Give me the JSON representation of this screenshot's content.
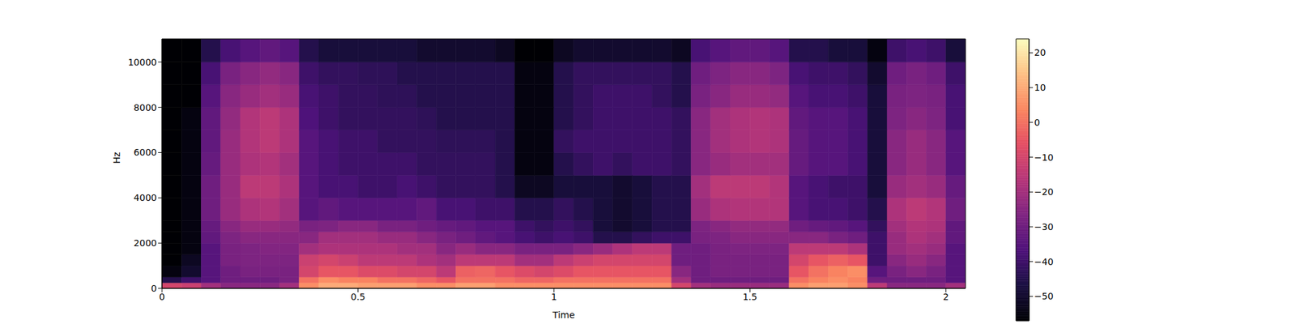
{
  "chart_data": {
    "type": "heatmap",
    "xlabel": "Time",
    "ylabel": "Hz",
    "color": "magma",
    "xlim": [
      0,
      2.05
    ],
    "xticks": [
      0,
      0.5,
      1,
      1.5,
      2
    ],
    "ylim": [
      0,
      11025
    ],
    "yticks": [
      0,
      2000,
      4000,
      6000,
      8000,
      10000
    ],
    "x_edges": [
      0,
      0.05,
      0.1,
      0.15,
      0.2,
      0.25,
      0.3,
      0.35,
      0.4,
      0.45,
      0.5,
      0.55,
      0.6,
      0.65,
      0.7,
      0.75,
      0.8,
      0.85,
      0.9,
      0.95,
      1.0,
      1.05,
      1.1,
      1.15,
      1.2,
      1.25,
      1.3,
      1.35,
      1.4,
      1.45,
      1.5,
      1.55,
      1.6,
      1.65,
      1.7,
      1.75,
      1.8,
      1.85,
      1.9,
      1.95,
      2.0,
      2.05
    ],
    "y_edges": [
      0,
      250,
      500,
      1000,
      1500,
      2000,
      2500,
      3000,
      4000,
      5000,
      6000,
      7000,
      8000,
      9000,
      10000,
      11025
    ],
    "z": [
      [
        -10,
        -45,
        -55,
        -57,
        -57,
        -57,
        -57,
        -57,
        -57,
        -57,
        -57,
        -57,
        -57,
        -57,
        -57
      ],
      [
        -12,
        -40,
        -50,
        -52,
        -55,
        -55,
        -55,
        -55,
        -55,
        -55,
        -55,
        -55,
        -57,
        -57,
        -57
      ],
      [
        -20,
        -35,
        -35,
        -35,
        -35,
        -33,
        -32,
        -30,
        -30,
        -32,
        -33,
        -33,
        -35,
        -38,
        -45
      ],
      [
        -25,
        -30,
        -30,
        -28,
        -28,
        -27,
        -25,
        -22,
        -22,
        -22,
        -22,
        -23,
        -25,
        -28,
        -38
      ],
      [
        -25,
        -30,
        -28,
        -27,
        -27,
        -25,
        -22,
        -18,
        -15,
        -18,
        -17,
        -17,
        -22,
        -25,
        -35
      ],
      [
        -25,
        -30,
        -28,
        -27,
        -26,
        -25,
        -22,
        -17,
        -15,
        -17,
        -15,
        -15,
        -20,
        -23,
        -33
      ],
      [
        -20,
        -28,
        -28,
        -27,
        -26,
        -25,
        -23,
        -20,
        -18,
        -20,
        -18,
        -18,
        -22,
        -25,
        -35
      ],
      [
        5,
        0,
        -10,
        -12,
        -20,
        -25,
        -28,
        -35,
        -35,
        -35,
        -35,
        -37,
        -38,
        -40,
        -45
      ],
      [
        10,
        5,
        -5,
        -10,
        -18,
        -20,
        -27,
        -33,
        -38,
        -38,
        -38,
        -40,
        -40,
        -42,
        -48
      ],
      [
        10,
        3,
        -5,
        -12,
        -18,
        -20,
        -25,
        -35,
        -38,
        -40,
        -40,
        -42,
        -42,
        -42,
        -48
      ],
      [
        8,
        3,
        -8,
        -15,
        -18,
        -20,
        -25,
        -35,
        -40,
        -40,
        -40,
        -42,
        -42,
        -43,
        -48
      ],
      [
        8,
        0,
        -8,
        -15,
        -18,
        -22,
        -28,
        -35,
        -40,
        -40,
        -42,
        -42,
        -43,
        -43,
        -48
      ],
      [
        8,
        0,
        -10,
        -15,
        -20,
        -22,
        -28,
        -35,
        -38,
        -40,
        -42,
        -42,
        -43,
        -45,
        -48
      ],
      [
        5,
        -2,
        -10,
        -18,
        -20,
        -25,
        -30,
        -33,
        -40,
        -42,
        -42,
        -43,
        -45,
        -45,
        -50
      ],
      [
        5,
        -5,
        -15,
        -20,
        -25,
        -28,
        -32,
        -38,
        -42,
        -42,
        -43,
        -45,
        -45,
        -45,
        -50
      ],
      [
        8,
        0,
        -3,
        -15,
        -22,
        -30,
        -33,
        -38,
        -42,
        -42,
        -43,
        -45,
        -45,
        -45,
        -50
      ],
      [
        8,
        0,
        -2,
        -15,
        -25,
        -33,
        -35,
        -40,
        -42,
        -42,
        -43,
        -45,
        -45,
        -45,
        -50
      ],
      [
        5,
        0,
        -5,
        -15,
        -25,
        -35,
        -35,
        -40,
        -45,
        -45,
        -45,
        -45,
        -45,
        -45,
        -52
      ],
      [
        5,
        -2,
        -8,
        -20,
        -28,
        -38,
        -40,
        -45,
        -52,
        -55,
        -55,
        -55,
        -55,
        -55,
        -57
      ],
      [
        5,
        -2,
        -10,
        -20,
        -28,
        -40,
        -42,
        -45,
        -52,
        -55,
        -55,
        -55,
        -55,
        -55,
        -57
      ],
      [
        5,
        0,
        -8,
        -15,
        -28,
        -38,
        -40,
        -42,
        -48,
        -45,
        -42,
        -45,
        -45,
        -45,
        -52
      ],
      [
        5,
        0,
        -5,
        -12,
        -25,
        -40,
        -42,
        -45,
        -48,
        -42,
        -40,
        -42,
        -42,
        -42,
        -50
      ],
      [
        5,
        0,
        -5,
        -10,
        -22,
        -45,
        -48,
        -48,
        -48,
        -40,
        -40,
        -40,
        -40,
        -42,
        -50
      ],
      [
        5,
        0,
        -5,
        -10,
        -18,
        -45,
        -50,
        -50,
        -50,
        -42,
        -40,
        -40,
        -40,
        -42,
        -50
      ],
      [
        5,
        0,
        -5,
        -10,
        -15,
        -42,
        -48,
        -48,
        -48,
        -40,
        -40,
        -40,
        -40,
        -42,
        -50
      ],
      [
        5,
        0,
        -5,
        -10,
        -15,
        -40,
        -45,
        -45,
        -45,
        -40,
        -40,
        -40,
        -42,
        -42,
        -50
      ],
      [
        -10,
        -20,
        -25,
        -30,
        -30,
        -40,
        -45,
        -45,
        -45,
        -42,
        -42,
        -42,
        -45,
        -45,
        -52
      ],
      [
        -20,
        -30,
        -30,
        -30,
        -30,
        -28,
        -27,
        -22,
        -20,
        -25,
        -25,
        -25,
        -28,
        -30,
        -38
      ],
      [
        -22,
        -30,
        -28,
        -28,
        -28,
        -27,
        -25,
        -18,
        -15,
        -22,
        -20,
        -20,
        -25,
        -27,
        -35
      ],
      [
        -22,
        -30,
        -28,
        -28,
        -27,
        -25,
        -23,
        -17,
        -15,
        -20,
        -18,
        -18,
        -22,
        -25,
        -33
      ],
      [
        -22,
        -30,
        -28,
        -28,
        -27,
        -25,
        -23,
        -17,
        -15,
        -20,
        -17,
        -17,
        -22,
        -25,
        -33
      ],
      [
        -22,
        -30,
        -28,
        -28,
        -27,
        -25,
        -23,
        -17,
        -17,
        -20,
        -18,
        -18,
        -23,
        -27,
        -35
      ],
      [
        5,
        0,
        -5,
        -10,
        -15,
        -25,
        -30,
        -35,
        -35,
        -32,
        -32,
        -33,
        -35,
        -38,
        -45
      ],
      [
        8,
        3,
        0,
        -5,
        -15,
        -25,
        -32,
        -38,
        -38,
        -35,
        -35,
        -35,
        -38,
        -40,
        -45
      ],
      [
        8,
        5,
        3,
        -3,
        -15,
        -28,
        -33,
        -38,
        -40,
        -35,
        -35,
        -35,
        -38,
        -40,
        -48
      ],
      [
        5,
        3,
        5,
        -5,
        -18,
        -30,
        -35,
        -40,
        -40,
        -38,
        -38,
        -38,
        -40,
        -42,
        -48
      ],
      [
        -15,
        -30,
        -35,
        -40,
        -40,
        -40,
        -42,
        -45,
        -48,
        -48,
        -48,
        -48,
        -48,
        -50,
        -55
      ],
      [
        -25,
        -30,
        -28,
        -25,
        -22,
        -22,
        -20,
        -18,
        -22,
        -25,
        -25,
        -27,
        -28,
        -30,
        -40
      ],
      [
        -25,
        -30,
        -25,
        -22,
        -20,
        -18,
        -17,
        -15,
        -20,
        -22,
        -22,
        -25,
        -27,
        -28,
        -38
      ],
      [
        -25,
        -30,
        -28,
        -25,
        -22,
        -20,
        -18,
        -17,
        -22,
        -25,
        -25,
        -27,
        -28,
        -30,
        -40
      ],
      [
        -20,
        -35,
        -35,
        -35,
        -35,
        -33,
        -33,
        -30,
        -32,
        -35,
        -35,
        -38,
        -38,
        -40,
        -48
      ]
    ],
    "colorbar": {
      "range": [
        -57,
        24
      ],
      "ticks": [
        {
          "value": -50,
          "label": "−50"
        },
        {
          "value": -40,
          "label": "−40"
        },
        {
          "value": -30,
          "label": "−30"
        },
        {
          "value": -20,
          "label": "−20"
        },
        {
          "value": -10,
          "label": "−10"
        },
        0,
        10,
        20
      ]
    }
  }
}
